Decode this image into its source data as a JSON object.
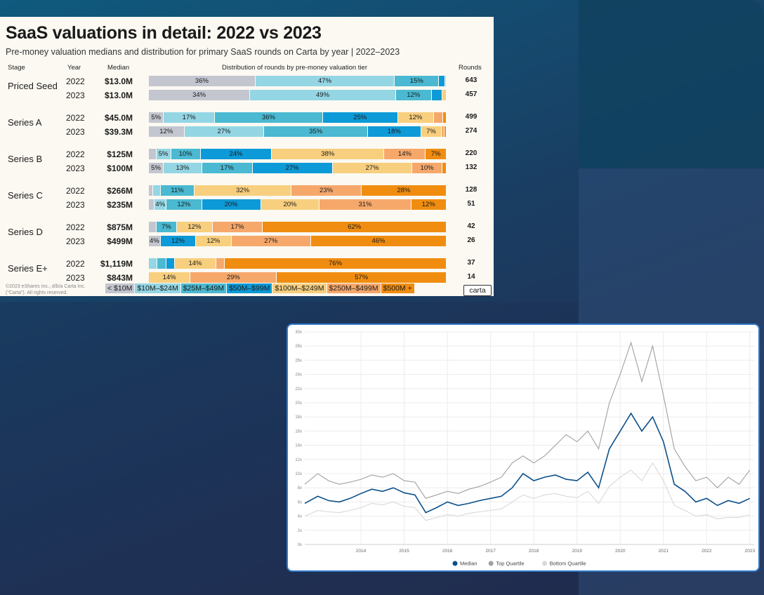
{
  "chart_data": [
    {
      "type": "bar",
      "orientation": "horizontal-stacked-100",
      "title": "SaaS valuations in detail: 2022 vs 2023",
      "subtitle": "Pre-money valuation medians and distribution for primary SaaS rounds on Carta by year | 2022–2023",
      "headers": {
        "stage": "Stage",
        "year": "Year",
        "median": "Median",
        "distribution": "Distribution of rounds by pre-money valuation tier",
        "rounds": "Rounds"
      },
      "tiers": [
        "< $10M",
        "$10M–$24M",
        "$25M–$49M",
        "$50M–$99M",
        "$100M–$249M",
        "$250M–$499M",
        "$500M +"
      ],
      "tier_colors": [
        "#c3c6cf",
        "#94d6e4",
        "#4ab9d1",
        "#0d9ad8",
        "#f8cf7e",
        "#f6a86b",
        "#f08d10"
      ],
      "stages": [
        {
          "stage": "Priced Seed",
          "rows": [
            {
              "year": "2022",
              "median": "$13.0M",
              "rounds": "643",
              "values": [
                36,
                47,
                15,
                2,
                0.5,
                0,
                0
              ],
              "labels": [
                "36%",
                "47%",
                "15%",
                "",
                "",
                "",
                ""
              ]
            },
            {
              "year": "2023",
              "median": "$13.0M",
              "rounds": "457",
              "values": [
                34,
                49,
                12,
                3.5,
                1.5,
                0,
                0
              ],
              "labels": [
                "34%",
                "49%",
                "12%",
                "",
                "",
                "",
                ""
              ]
            }
          ]
        },
        {
          "stage": "Series A",
          "rows": [
            {
              "year": "2022",
              "median": "$45.0M",
              "rounds": "499",
              "values": [
                5,
                17,
                36,
                25,
                12,
                3,
                1.2
              ],
              "labels": [
                "5%",
                "17%",
                "36%",
                "25%",
                "12%",
                "",
                ""
              ]
            },
            {
              "year": "2023",
              "median": "$39.3M",
              "rounds": "274",
              "values": [
                12,
                27,
                35,
                18,
                7,
                1,
                0.6
              ],
              "labels": [
                "12%",
                "27%",
                "35%",
                "18%",
                "7%",
                "",
                ""
              ]
            }
          ]
        },
        {
          "stage": "Series B",
          "rows": [
            {
              "year": "2022",
              "median": "$125M",
              "rounds": "220",
              "values": [
                2.5,
                5,
                10,
                24,
                38,
                14,
                7
              ],
              "labels": [
                "",
                "5%",
                "10%",
                "24%",
                "38%",
                "14%",
                "7%"
              ]
            },
            {
              "year": "2023",
              "median": "$100M",
              "rounds": "132",
              "values": [
                5,
                13,
                17,
                27,
                27,
                10,
                1.5
              ],
              "labels": [
                "5%",
                "13%",
                "17%",
                "27%",
                "27%",
                "10%",
                ""
              ]
            }
          ]
        },
        {
          "stage": "Series C",
          "rows": [
            {
              "year": "2022",
              "median": "$266M",
              "rounds": "128",
              "values": [
                1.5,
                2.5,
                11,
                0,
                32,
                23,
                28
              ],
              "labels": [
                "",
                "",
                "11%",
                "",
                "32%",
                "23%",
                "28%"
              ]
            },
            {
              "year": "2023",
              "median": "$235M",
              "rounds": "51",
              "values": [
                2,
                4,
                12,
                20,
                20,
                31,
                12
              ],
              "labels": [
                "",
                "4%",
                "12%",
                "20%",
                "20%",
                "31%",
                "12%"
              ]
            }
          ]
        },
        {
          "stage": "Series D",
          "rows": [
            {
              "year": "2022",
              "median": "$875M",
              "rounds": "42",
              "values": [
                2.5,
                0,
                7,
                0,
                12,
                17,
                62
              ],
              "labels": [
                "",
                "",
                "7%",
                "",
                "12%",
                "17%",
                "62%"
              ]
            },
            {
              "year": "2023",
              "median": "$499M",
              "rounds": "26",
              "values": [
                4,
                0,
                0,
                12,
                12,
                27,
                46
              ],
              "labels": [
                "4%",
                "",
                "",
                "12%",
                "12%",
                "27%",
                "46%"
              ]
            }
          ]
        },
        {
          "stage": "Series E+",
          "rows": [
            {
              "year": "2022",
              "median": "$1,119M",
              "rounds": "37",
              "values": [
                0,
                3,
                3,
                3,
                14,
                3,
                76
              ],
              "labels": [
                "",
                "",
                "",
                "",
                "14%",
                "",
                "76%"
              ]
            },
            {
              "year": "2023",
              "median": "$843M",
              "rounds": "14",
              "values": [
                0,
                0,
                0,
                0,
                14,
                29,
                57
              ],
              "labels": [
                "",
                "",
                "",
                "",
                "14%",
                "29%",
                "57%"
              ]
            }
          ]
        }
      ],
      "footnote": "©2023 eShares Inc., d/b/a Carta Inc. (\"Carta\"). All rights reserved.",
      "logo": "carta"
    },
    {
      "type": "line",
      "x_ticks": [
        "2014",
        "2015",
        "2016",
        "2017",
        "2018",
        "2019",
        "2020",
        "2021",
        "2022",
        "2023"
      ],
      "y_ticks": [
        "0x",
        "2x",
        "4x",
        "6x",
        "8x",
        "10x",
        "12x",
        "14x",
        "16x",
        "18x",
        "20x",
        "22x",
        "24x",
        "26x",
        "28x",
        "30x"
      ],
      "ylim": [
        0,
        30
      ],
      "grid": true,
      "legend_position": "bottom",
      "x": [
        2013.2,
        2013.5,
        2013.75,
        2014.0,
        2014.25,
        2014.5,
        2014.75,
        2015.0,
        2015.25,
        2015.5,
        2015.75,
        2016.0,
        2016.25,
        2016.5,
        2016.75,
        2017.0,
        2017.25,
        2017.5,
        2017.75,
        2018.0,
        2018.25,
        2018.5,
        2018.75,
        2019.0,
        2019.25,
        2019.5,
        2019.75,
        2020.0,
        2020.25,
        2020.5,
        2020.75,
        2021.0,
        2021.25,
        2021.5,
        2021.75,
        2022.0,
        2022.25,
        2022.5,
        2022.75,
        2023.0,
        2023.25,
        2023.5
      ],
      "series": [
        {
          "name": "Median",
          "color": "#0b4f8a",
          "values": [
            5.8,
            6.8,
            6.2,
            6.0,
            6.5,
            7.2,
            7.8,
            7.5,
            8.0,
            7.3,
            7.0,
            4.5,
            5.2,
            6.0,
            5.5,
            5.8,
            6.2,
            6.5,
            6.8,
            8.0,
            10.0,
            9.0,
            9.5,
            9.8,
            9.2,
            9.0,
            10.2,
            8.0,
            13.5,
            16.0,
            18.5,
            16.0,
            18.0,
            14.5,
            8.5,
            7.5,
            6.0,
            6.5,
            5.5,
            6.2,
            5.8,
            6.5
          ]
        },
        {
          "name": "Top Quartile",
          "color": "#a0a0a0",
          "values": [
            8.5,
            10.0,
            9.0,
            8.5,
            8.8,
            9.2,
            9.8,
            9.5,
            10.0,
            9.0,
            8.8,
            6.5,
            7.0,
            7.5,
            7.2,
            7.8,
            8.2,
            8.8,
            9.5,
            11.5,
            12.5,
            11.5,
            12.5,
            14.0,
            15.5,
            14.5,
            16.0,
            13.5,
            20.0,
            24.0,
            28.5,
            23.0,
            28.0,
            21.0,
            13.5,
            11.0,
            9.0,
            9.5,
            8.0,
            9.5,
            8.5,
            10.5
          ]
        },
        {
          "name": "Bottom Quartile",
          "color": "#d8d8d8",
          "values": [
            4.0,
            4.8,
            4.6,
            4.5,
            4.8,
            5.2,
            5.8,
            5.6,
            6.0,
            5.4,
            5.2,
            3.4,
            3.8,
            4.2,
            4.0,
            4.4,
            4.6,
            4.8,
            5.0,
            6.0,
            7.0,
            6.5,
            7.0,
            7.2,
            6.8,
            6.6,
            7.5,
            5.8,
            8.2,
            9.5,
            10.5,
            9.0,
            11.5,
            9.0,
            5.5,
            4.8,
            4.0,
            4.2,
            3.6,
            3.8,
            3.8,
            4.2
          ]
        }
      ]
    }
  ]
}
